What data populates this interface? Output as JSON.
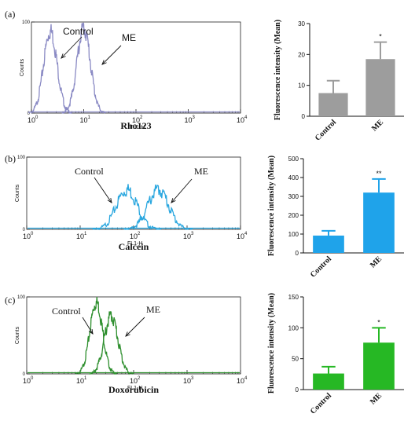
{
  "chart_data": [
    {
      "type": "histogram",
      "panel": "(a)",
      "title": "Rho123",
      "xlabel": "FL1-H",
      "ylabel": "Counts",
      "xscale": "log",
      "xlim": [
        1,
        10000
      ],
      "ylim": [
        0,
        100
      ],
      "xtick_bases": [
        "10",
        "10",
        "10",
        "10",
        "10"
      ],
      "xtick_exps": [
        "0",
        "1",
        "2",
        "3",
        "4"
      ],
      "yticks": [
        "0",
        "100"
      ],
      "color": "#8a8ac4",
      "annotations": [
        "Control",
        "ME"
      ],
      "series": [
        {
          "name": "Control",
          "peak_x": 2.3,
          "width_decades": 0.13,
          "peak_y": 95
        },
        {
          "name": "ME",
          "peak_x": 10,
          "width_decades": 0.13,
          "peak_y": 98
        }
      ]
    },
    {
      "type": "bar",
      "panel": "(a)",
      "categories": [
        "Control",
        "ME"
      ],
      "values": [
        7.5,
        18.5
      ],
      "errors": [
        4,
        5.5
      ],
      "significance": [
        "",
        "*"
      ],
      "ylabel": "Fluorescence intensity (Mean)",
      "ylim": [
        0,
        30
      ],
      "yticks": [
        "0",
        "10",
        "20",
        "30"
      ],
      "color": "#9d9d9d"
    },
    {
      "type": "histogram",
      "panel": "(b)",
      "title": "Calcein",
      "xlabel": "FL1-H",
      "ylabel": "Counts",
      "xscale": "log",
      "xlim": [
        1,
        10000
      ],
      "ylim": [
        0,
        100
      ],
      "xtick_bases": [
        "10",
        "10",
        "10",
        "10",
        "10"
      ],
      "xtick_exps": [
        "0",
        "1",
        "2",
        "3",
        "4"
      ],
      "yticks": [
        "0",
        "100"
      ],
      "color": "#2aa7df",
      "annotations": [
        "Control",
        "ME"
      ],
      "series": [
        {
          "name": "Control",
          "peak_x": 75,
          "width_decades": 0.2,
          "peak_y": 60
        },
        {
          "name": "ME",
          "peak_x": 290,
          "width_decades": 0.2,
          "peak_y": 60
        }
      ]
    },
    {
      "type": "bar",
      "panel": "(b)",
      "categories": [
        "Control",
        "ME"
      ],
      "values": [
        92,
        320
      ],
      "errors": [
        25,
        72
      ],
      "significance": [
        "",
        "**"
      ],
      "ylabel": "Fluorescence intensity (Mean)",
      "ylim": [
        0,
        500
      ],
      "yticks": [
        "0",
        "100",
        "200",
        "300",
        "400",
        "500"
      ],
      "color": "#1fa3ea"
    },
    {
      "type": "histogram",
      "panel": "(c)",
      "title": "Doxorubicin",
      "xlabel": "FL1-H",
      "ylabel": "Counts",
      "xscale": "log",
      "xlim": [
        1,
        10000
      ],
      "ylim": [
        0,
        100
      ],
      "xtick_bases": [
        "10",
        "10",
        "10",
        "10",
        "10"
      ],
      "xtick_exps": [
        "0",
        "1",
        "2",
        "3",
        "4"
      ],
      "yticks": [
        "0",
        "100"
      ],
      "color": "#2e8f2e",
      "annotations": [
        "Control",
        "ME"
      ],
      "series": [
        {
          "name": "Control",
          "peak_x": 20,
          "width_decades": 0.12,
          "peak_y": 98
        },
        {
          "name": "ME",
          "peak_x": 38,
          "width_decades": 0.13,
          "peak_y": 80
        }
      ]
    },
    {
      "type": "bar",
      "panel": "(c)",
      "categories": [
        "Control",
        "ME"
      ],
      "values": [
        26,
        76
      ],
      "errors": [
        11,
        24
      ],
      "significance": [
        "",
        "*"
      ],
      "ylabel": "Fluorescence intensity (Mean)",
      "ylim": [
        0,
        150
      ],
      "yticks": [
        "0",
        "50",
        "100",
        "150"
      ],
      "color": "#26b824"
    }
  ]
}
